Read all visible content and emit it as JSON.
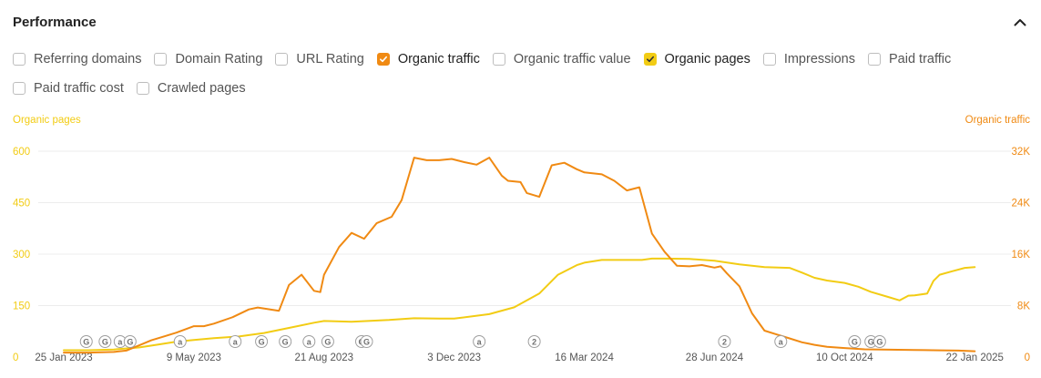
{
  "header": {
    "title": "Performance"
  },
  "checkbox_rows": [
    [
      {
        "label": "Referring domains",
        "checked": false,
        "color": ""
      },
      {
        "label": "Domain Rating",
        "checked": false,
        "color": ""
      },
      {
        "label": "URL Rating",
        "checked": false,
        "color": ""
      },
      {
        "label": "Organic traffic",
        "checked": true,
        "color": "#f08a13"
      },
      {
        "label": "Organic traffic value",
        "checked": false,
        "color": ""
      },
      {
        "label": "Organic pages",
        "checked": true,
        "color": "#f2cc14"
      },
      {
        "label": "Impressions",
        "checked": false,
        "color": ""
      },
      {
        "label": "Paid traffic",
        "checked": false,
        "color": ""
      }
    ],
    [
      {
        "label": "Paid traffic cost",
        "checked": false,
        "color": ""
      },
      {
        "label": "Crawled pages",
        "checked": false,
        "color": ""
      }
    ]
  ],
  "chart_data": {
    "type": "line",
    "title": "",
    "colors": {
      "organic_pages": "#f2cc14",
      "organic_traffic": "#f08a13",
      "grid": "#ececec",
      "marker": "#9e9e9e"
    },
    "y_left": {
      "label": "Organic pages",
      "ticks": [
        "0",
        "150",
        "300",
        "450",
        "600"
      ],
      "range": [
        0,
        600
      ]
    },
    "y_right": {
      "label": "Organic traffic",
      "ticks": [
        "0",
        "8K",
        "16K",
        "24K",
        "32K"
      ],
      "range": [
        0,
        32000
      ]
    },
    "x_range_days": [
      0,
      730
    ],
    "x_ticks": [
      {
        "label": "25 Jan 2023",
        "day": 0
      },
      {
        "label": "9 May 2023",
        "day": 104
      },
      {
        "label": "21 Aug 2023",
        "day": 208
      },
      {
        "label": "3 Dec 2023",
        "day": 312
      },
      {
        "label": "16 Mar 2024",
        "day": 416
      },
      {
        "label": "28 Jun 2024",
        "day": 520
      },
      {
        "label": "10 Oct 2024",
        "day": 624
      },
      {
        "label": "22 Jan 2025",
        "day": 728
      }
    ],
    "series": [
      {
        "name": "Organic pages",
        "axis": "left",
        "points": [
          [
            0,
            20
          ],
          [
            20,
            20
          ],
          [
            40,
            22
          ],
          [
            60,
            28
          ],
          [
            75,
            36
          ],
          [
            90,
            45
          ],
          [
            104,
            50
          ],
          [
            120,
            55
          ],
          [
            140,
            60
          ],
          [
            160,
            70
          ],
          [
            180,
            85
          ],
          [
            200,
            100
          ],
          [
            208,
            105
          ],
          [
            230,
            103
          ],
          [
            260,
            108
          ],
          [
            280,
            113
          ],
          [
            300,
            112
          ],
          [
            312,
            112
          ],
          [
            340,
            125
          ],
          [
            360,
            145
          ],
          [
            380,
            185
          ],
          [
            395,
            240
          ],
          [
            410,
            268
          ],
          [
            416,
            275
          ],
          [
            430,
            283
          ],
          [
            450,
            283
          ],
          [
            462,
            283
          ],
          [
            470,
            287
          ],
          [
            480,
            287
          ],
          [
            500,
            286
          ],
          [
            520,
            281
          ],
          [
            540,
            270
          ],
          [
            560,
            262
          ],
          [
            580,
            260
          ],
          [
            590,
            246
          ],
          [
            600,
            231
          ],
          [
            610,
            223
          ],
          [
            624,
            216
          ],
          [
            635,
            205
          ],
          [
            645,
            190
          ],
          [
            660,
            174
          ],
          [
            668,
            165
          ],
          [
            675,
            179
          ],
          [
            680,
            180
          ],
          [
            690,
            185
          ],
          [
            695,
            222
          ],
          [
            700,
            240
          ],
          [
            710,
            250
          ],
          [
            720,
            260
          ],
          [
            728,
            262
          ]
        ]
      },
      {
        "name": "Organic traffic",
        "axis": "right",
        "points": [
          [
            0,
            700
          ],
          [
            20,
            700
          ],
          [
            40,
            800
          ],
          [
            50,
            1000
          ],
          [
            60,
            1800
          ],
          [
            70,
            2600
          ],
          [
            80,
            3200
          ],
          [
            90,
            3800
          ],
          [
            104,
            4800
          ],
          [
            112,
            4800
          ],
          [
            120,
            5200
          ],
          [
            135,
            6200
          ],
          [
            148,
            7400
          ],
          [
            155,
            7700
          ],
          [
            165,
            7400
          ],
          [
            172,
            7200
          ],
          [
            180,
            11200
          ],
          [
            190,
            12800
          ],
          [
            200,
            10300
          ],
          [
            205,
            10100
          ],
          [
            208,
            12800
          ],
          [
            220,
            17100
          ],
          [
            230,
            19300
          ],
          [
            240,
            18400
          ],
          [
            250,
            20800
          ],
          [
            262,
            21800
          ],
          [
            270,
            24400
          ],
          [
            280,
            31000
          ],
          [
            290,
            30600
          ],
          [
            300,
            30600
          ],
          [
            310,
            30800
          ],
          [
            320,
            30300
          ],
          [
            330,
            29900
          ],
          [
            340,
            31000
          ],
          [
            350,
            28200
          ],
          [
            355,
            27400
          ],
          [
            365,
            27200
          ],
          [
            370,
            25500
          ],
          [
            380,
            24900
          ],
          [
            390,
            29800
          ],
          [
            400,
            30200
          ],
          [
            410,
            29200
          ],
          [
            416,
            28700
          ],
          [
            430,
            28400
          ],
          [
            440,
            27400
          ],
          [
            450,
            25900
          ],
          [
            460,
            26400
          ],
          [
            470,
            19200
          ],
          [
            480,
            16400
          ],
          [
            490,
            14200
          ],
          [
            500,
            14100
          ],
          [
            510,
            14300
          ],
          [
            520,
            13900
          ],
          [
            525,
            14100
          ],
          [
            530,
            13000
          ],
          [
            540,
            11000
          ],
          [
            550,
            6800
          ],
          [
            560,
            4100
          ],
          [
            570,
            3500
          ],
          [
            580,
            2900
          ],
          [
            590,
            2300
          ],
          [
            600,
            1900
          ],
          [
            610,
            1600
          ],
          [
            624,
            1400
          ],
          [
            640,
            1200
          ],
          [
            660,
            1150
          ],
          [
            680,
            1100
          ],
          [
            700,
            1050
          ],
          [
            715,
            1000
          ],
          [
            728,
            900
          ]
        ]
      }
    ],
    "annotations": [
      {
        "day": 18,
        "letter": "G"
      },
      {
        "day": 33,
        "letter": "G"
      },
      {
        "day": 45,
        "letter": "a"
      },
      {
        "day": 53,
        "letter": "G"
      },
      {
        "day": 93,
        "letter": "a"
      },
      {
        "day": 137,
        "letter": "a"
      },
      {
        "day": 158,
        "letter": "G"
      },
      {
        "day": 177,
        "letter": "G"
      },
      {
        "day": 196,
        "letter": "a"
      },
      {
        "day": 211,
        "letter": "G"
      },
      {
        "day": 238,
        "letter": "G"
      },
      {
        "day": 242,
        "letter": "G"
      },
      {
        "day": 332,
        "letter": "a"
      },
      {
        "day": 376,
        "letter": "2"
      },
      {
        "day": 528,
        "letter": "2"
      },
      {
        "day": 573,
        "letter": "a"
      },
      {
        "day": 632,
        "letter": "G"
      },
      {
        "day": 645,
        "letter": "G"
      },
      {
        "day": 652,
        "letter": "G"
      }
    ]
  }
}
